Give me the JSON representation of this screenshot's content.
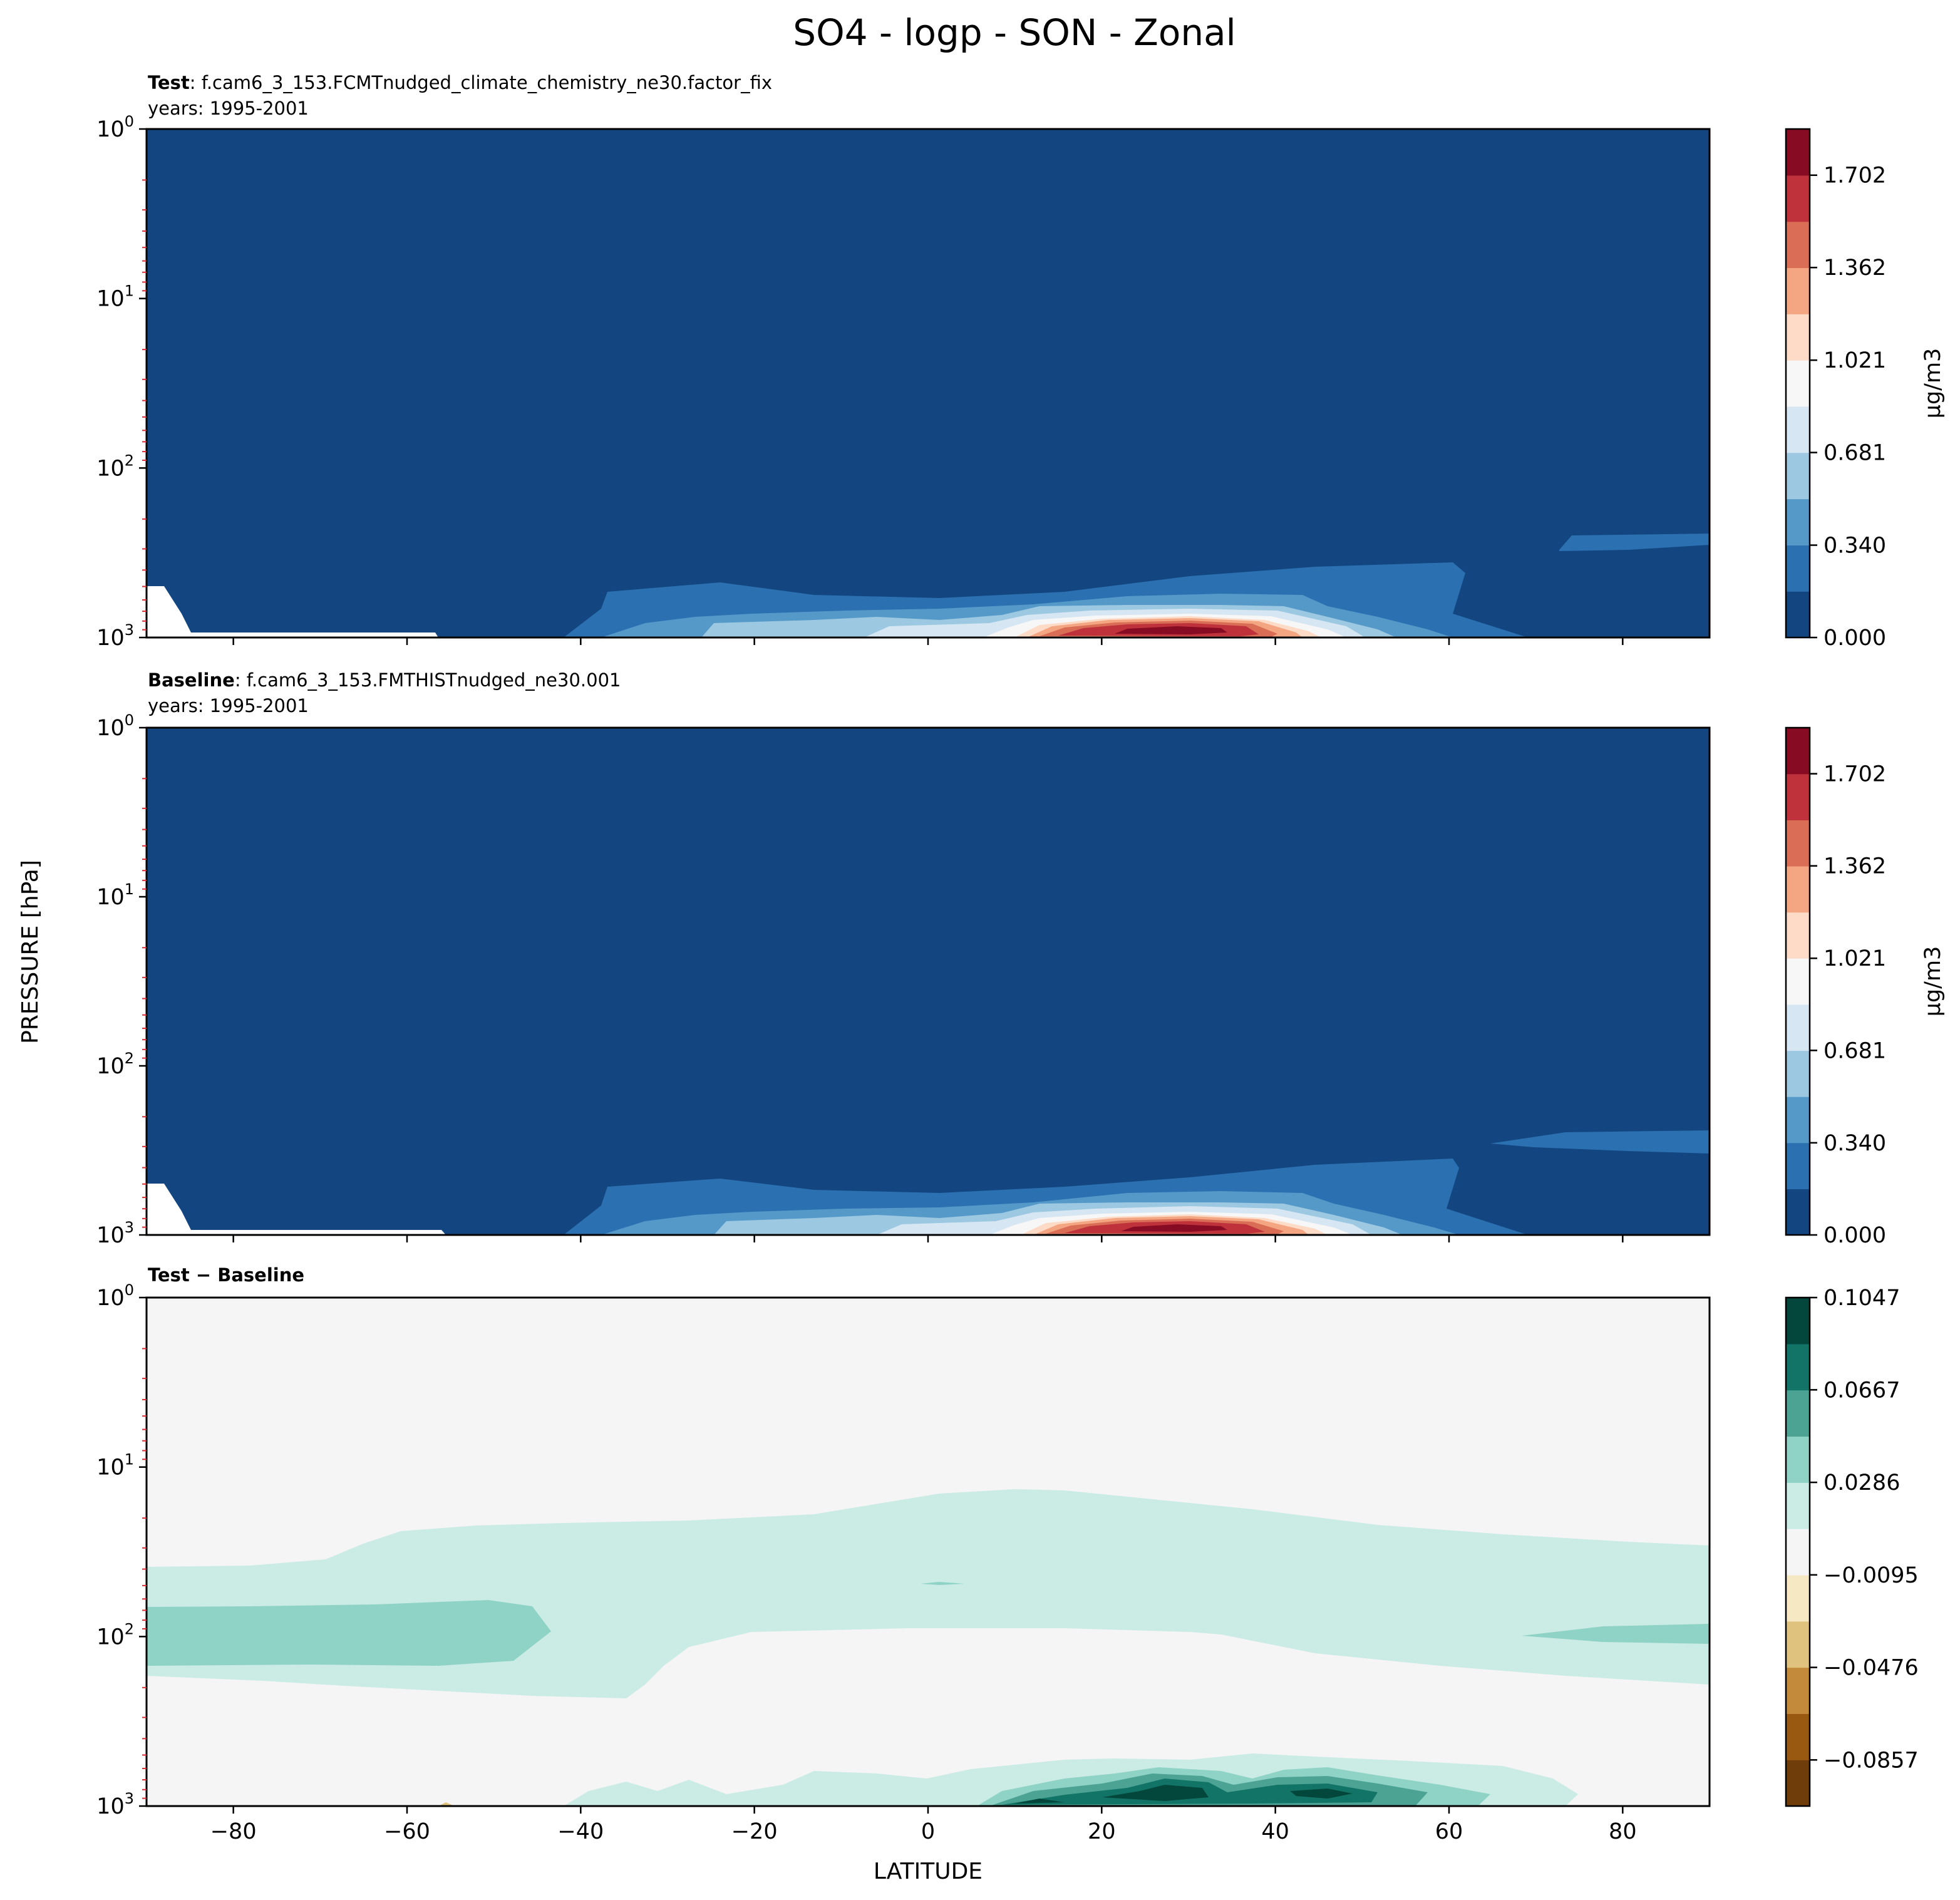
{
  "figure": {
    "title": "SO4 - logp - SON - Zonal",
    "ylabel": "PRESSURE [hPa]",
    "xlabel": "LATITUDE"
  },
  "chart_data": [
    {
      "type": "contour",
      "panel": "test",
      "title_bold": "Test",
      "title_rest": ": f.cam6_3_153.FCMTnudged_climate_chemistry_ne30.factor_fix",
      "subtitle": "years: 1995-2001",
      "xlim": [
        -90,
        90
      ],
      "ylim_log_pressure": [
        1,
        1000
      ],
      "x_ticks": [
        -80,
        -60,
        -40,
        -20,
        0,
        20,
        40,
        60,
        80
      ],
      "y_ticks": [
        {
          "base": "10",
          "exp": "0"
        },
        {
          "base": "10",
          "exp": "1"
        },
        {
          "base": "10",
          "exp": "2"
        },
        {
          "base": "10",
          "exp": "3"
        }
      ],
      "colorbar": {
        "label": "μg/m3",
        "ticks": [
          "0.000",
          "0.340",
          "0.681",
          "1.021",
          "1.362",
          "1.702"
        ],
        "min": 0.0,
        "max": 1.872,
        "colors": [
          "#134680",
          "#2b70b1",
          "#5599c9",
          "#9cc8e1",
          "#d6e6f3",
          "#f7f7f7",
          "#fddbc7",
          "#f4a582",
          "#d96d55",
          "#bf323c",
          "#860b23"
        ]
      },
      "features": [
        {
          "name": "upper band",
          "lat_range": [
            -35,
            65
          ],
          "pressure_top_hPa": 300,
          "level": 1
        },
        {
          "name": "mid band",
          "lat_range": [
            -22,
            48
          ],
          "pressure_top_hPa": 600,
          "level": 2
        },
        {
          "name": "maximum",
          "lat_center": 28,
          "pressure_hPa": 900,
          "value_max": 1.85
        },
        {
          "name": "arctic layer",
          "lat_range": [
            72,
            90
          ],
          "pressure_hPa": 250,
          "level": 1
        }
      ]
    },
    {
      "type": "contour",
      "panel": "baseline",
      "title_bold": "Baseline",
      "title_rest": ": f.cam6_3_153.FMTHISTnudged_ne30.001",
      "subtitle": "years: 1995-2001",
      "xlim": [
        -90,
        90
      ],
      "ylim_log_pressure": [
        1,
        1000
      ],
      "x_ticks": [
        -80,
        -60,
        -40,
        -20,
        0,
        20,
        40,
        60,
        80
      ],
      "y_ticks": [
        {
          "base": "10",
          "exp": "0"
        },
        {
          "base": "10",
          "exp": "1"
        },
        {
          "base": "10",
          "exp": "2"
        },
        {
          "base": "10",
          "exp": "3"
        }
      ],
      "colorbar": {
        "label": "μg/m3",
        "ticks": [
          "0.000",
          "0.340",
          "0.681",
          "1.021",
          "1.362",
          "1.702"
        ],
        "min": 0.0,
        "max": 1.872,
        "colors": [
          "#134680",
          "#2b70b1",
          "#5599c9",
          "#9cc8e1",
          "#d6e6f3",
          "#f7f7f7",
          "#fddbc7",
          "#f4a582",
          "#d96d55",
          "#bf323c",
          "#860b23"
        ]
      },
      "features": [
        {
          "name": "upper band",
          "lat_range": [
            -35,
            65
          ],
          "pressure_top_hPa": 300,
          "level": 1
        },
        {
          "name": "mid band",
          "lat_range": [
            -22,
            48
          ],
          "pressure_top_hPa": 600,
          "level": 2
        },
        {
          "name": "maximum",
          "lat_center": 28,
          "pressure_hPa": 900,
          "value_max": 1.85
        },
        {
          "name": "arctic layer",
          "lat_range": [
            65,
            90
          ],
          "pressure_hPa": 250,
          "level": 1
        }
      ]
    },
    {
      "type": "contour",
      "panel": "difference",
      "title_bold": "Test − Baseline",
      "xlim": [
        -90,
        90
      ],
      "ylim_log_pressure": [
        1,
        1000
      ],
      "x_ticks": [
        -80,
        -60,
        -40,
        -20,
        0,
        20,
        40,
        60,
        80
      ],
      "y_ticks": [
        {
          "base": "10",
          "exp": "0"
        },
        {
          "base": "10",
          "exp": "1"
        },
        {
          "base": "10",
          "exp": "2"
        },
        {
          "base": "10",
          "exp": "3"
        }
      ],
      "colorbar": {
        "label": "",
        "ticks": [
          "−0.0857",
          "−0.0476",
          "−0.0095",
          "0.0286",
          "0.0667",
          "0.1047"
        ],
        "min": -0.1047,
        "max": 0.1047,
        "colors": [
          "#6e3d0a",
          "#995911",
          "#c48a3b",
          "#dfc27d",
          "#f6e8c3",
          "#f4f5f4",
          "#cbebe5",
          "#8ed3c6",
          "#4ca394",
          "#127466",
          "#03463b"
        ]
      },
      "features": [
        {
          "name": "background",
          "value": 0.0
        },
        {
          "name": "upper stratosphere positive band",
          "pressure_range_hPa": [
            15,
            200
          ],
          "value": 0.02
        },
        {
          "name": "southern high latitude max",
          "lat_range": [
            -90,
            -42
          ],
          "pressure_range_hPa": [
            70,
            160
          ],
          "value": 0.045
        },
        {
          "name": "northern max",
          "lat_range": [
            68,
            90
          ],
          "pressure_hPa": 100,
          "value": 0.045
        },
        {
          "name": "surface maxima",
          "lat_centers": [
            28,
            45
          ],
          "pressure_hPa": 900,
          "value_max": 0.1
        }
      ]
    }
  ]
}
